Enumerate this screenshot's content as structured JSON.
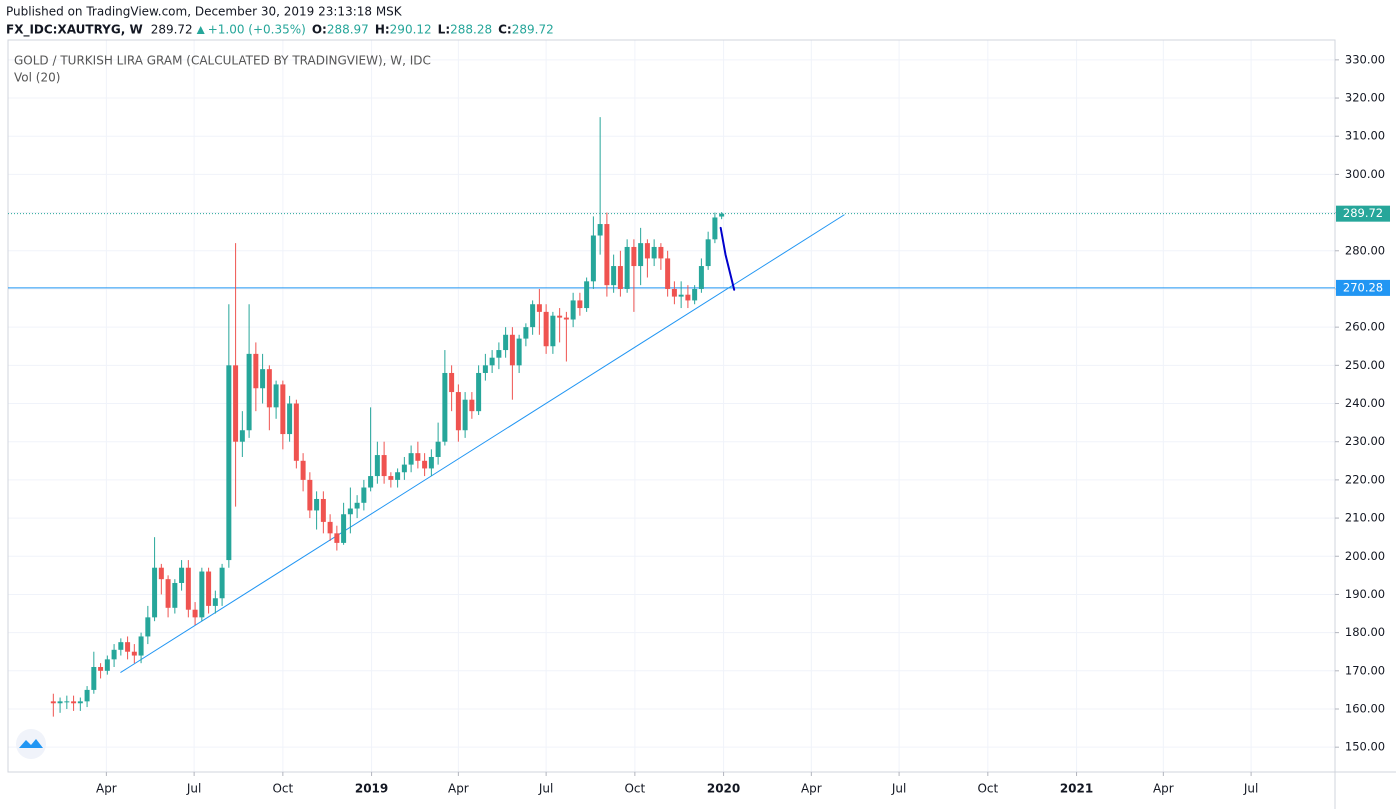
{
  "header": {
    "published": "Published on TradingView.com, December 30, 2019 23:13:18 MSK",
    "symbol": "FX_IDC:XAUTRYG, W",
    "change": "+1.00 (+0.35%)",
    "ohlc_labels": [
      "O:",
      "H:",
      "L:",
      "C:"
    ]
  },
  "chart_data": {
    "type": "candlestick",
    "title": "GOLD / TURKISH LIRA GRAM (CALCULATED BY TRADINGVIEW), W, IDC",
    "subtitle": "Vol (20)",
    "x": [
      "2018-02-05",
      "2018-02-12",
      "2018-02-19",
      "2018-02-26",
      "2018-03-05",
      "2018-03-12",
      "2018-03-19",
      "2018-03-26",
      "2018-04-02",
      "2018-04-09",
      "2018-04-16",
      "2018-04-23",
      "2018-04-30",
      "2018-05-07",
      "2018-05-14",
      "2018-05-21",
      "2018-05-28",
      "2018-06-04",
      "2018-06-11",
      "2018-06-18",
      "2018-06-25",
      "2018-07-02",
      "2018-07-09",
      "2018-07-16",
      "2018-07-23",
      "2018-07-30",
      "2018-08-06",
      "2018-08-13",
      "2018-08-20",
      "2018-08-27",
      "2018-09-03",
      "2018-09-10",
      "2018-09-17",
      "2018-09-24",
      "2018-10-01",
      "2018-10-08",
      "2018-10-15",
      "2018-10-22",
      "2018-10-29",
      "2018-11-05",
      "2018-11-12",
      "2018-11-19",
      "2018-11-26",
      "2018-12-03",
      "2018-12-10",
      "2018-12-17",
      "2018-12-24",
      "2018-12-31",
      "2019-01-07",
      "2019-01-14",
      "2019-01-21",
      "2019-01-28",
      "2019-02-04",
      "2019-02-11",
      "2019-02-18",
      "2019-02-25",
      "2019-03-04",
      "2019-03-11",
      "2019-03-18",
      "2019-03-25",
      "2019-04-01",
      "2019-04-08",
      "2019-04-15",
      "2019-04-22",
      "2019-04-29",
      "2019-05-06",
      "2019-05-13",
      "2019-05-20",
      "2019-05-27",
      "2019-06-03",
      "2019-06-10",
      "2019-06-17",
      "2019-06-24",
      "2019-07-01",
      "2019-07-08",
      "2019-07-15",
      "2019-07-22",
      "2019-07-29",
      "2019-08-05",
      "2019-08-12",
      "2019-08-19",
      "2019-08-26",
      "2019-09-02",
      "2019-09-09",
      "2019-09-16",
      "2019-09-23",
      "2019-09-30",
      "2019-10-07",
      "2019-10-14",
      "2019-10-21",
      "2019-10-28",
      "2019-11-04",
      "2019-11-11",
      "2019-11-18",
      "2019-11-25",
      "2019-12-02",
      "2019-12-09",
      "2019-12-16",
      "2019-12-23",
      "2019-12-30"
    ],
    "open": [
      162,
      161.5,
      162,
      162,
      161.5,
      162,
      165,
      171,
      170,
      173,
      175.5,
      177.5,
      175,
      174,
      179,
      184,
      197,
      194,
      186.5,
      193,
      197,
      186,
      184,
      196,
      187,
      189,
      199,
      250,
      230,
      233,
      253,
      244,
      249,
      239,
      245,
      232,
      240,
      225,
      220,
      212,
      215,
      209,
      206,
      203.5,
      211,
      212.5,
      214,
      218,
      221,
      226.5,
      221,
      220,
      222,
      224,
      227,
      225,
      223,
      226,
      230,
      248,
      243,
      233,
      241,
      238,
      248,
      250,
      252,
      254,
      258,
      250,
      257,
      260,
      266,
      264,
      255,
      263,
      262.5,
      262,
      267,
      265,
      272,
      284,
      287,
      271,
      276,
      270,
      281,
      276,
      282,
      278,
      281,
      278,
      270,
      268,
      268.5,
      267,
      270,
      276,
      283,
      288.97
    ],
    "high": [
      164,
      163,
      163.5,
      163.5,
      163,
      166,
      175,
      172,
      174,
      177,
      178.5,
      179,
      177,
      180,
      187,
      205,
      198,
      195,
      194,
      199,
      199,
      188,
      197,
      197,
      191,
      198,
      266,
      282,
      238,
      266,
      256,
      253,
      250,
      246,
      246,
      242,
      241,
      227,
      222,
      217,
      217,
      211,
      208,
      214,
      218,
      216,
      220,
      239,
      230,
      230,
      222,
      223,
      226,
      229,
      230,
      227,
      228,
      235,
      254,
      250,
      245,
      243,
      243,
      250,
      253,
      254,
      256,
      260,
      260,
      258,
      261,
      267,
      270,
      266,
      264,
      265,
      264,
      269,
      269,
      273,
      289,
      315,
      290,
      279,
      280,
      283,
      283,
      286,
      283,
      283,
      282,
      280,
      272,
      272,
      271,
      271,
      278,
      285,
      290,
      290.12
    ],
    "low": [
      158,
      159,
      160,
      159.5,
      159.5,
      160.5,
      164,
      168,
      169,
      171,
      174,
      173,
      172,
      172,
      177,
      183,
      190,
      184,
      185,
      191,
      184,
      182,
      183,
      185,
      185,
      187,
      197,
      213,
      226,
      231,
      238,
      240,
      233,
      236,
      228,
      230,
      223,
      217,
      210,
      207,
      206,
      204,
      201.5,
      203,
      206,
      210,
      212,
      217,
      219,
      219,
      218,
      218,
      220,
      222,
      223,
      221,
      221,
      224,
      229,
      238,
      230,
      231,
      236,
      237,
      246,
      248,
      249,
      252,
      241,
      248,
      255,
      258,
      258,
      253,
      253,
      256,
      251,
      260,
      263,
      264,
      270,
      279,
      268,
      269,
      268,
      269,
      264,
      271,
      273,
      276,
      275,
      268,
      266,
      265,
      265,
      266,
      269,
      275,
      282,
      288.28
    ],
    "close": [
      161.5,
      162,
      162,
      161.5,
      162,
      165,
      171,
      170,
      173,
      175.5,
      177.5,
      175,
      174,
      179,
      184,
      197,
      194,
      186.5,
      193,
      197,
      186,
      184,
      196,
      187,
      189,
      197,
      250,
      230,
      233,
      253,
      244,
      249,
      239,
      245,
      232,
      240,
      225,
      220,
      212,
      215,
      209,
      206,
      203.5,
      211,
      212.5,
      214,
      218,
      221,
      226.5,
      221,
      220,
      222,
      224,
      227,
      225,
      223,
      226,
      230,
      248,
      243,
      233,
      241,
      238,
      248,
      250,
      252,
      254,
      258,
      250,
      257,
      260,
      266,
      264,
      255,
      263,
      262.5,
      262,
      267,
      265,
      272,
      284,
      287,
      271,
      276,
      270,
      281,
      276,
      282,
      278,
      281,
      278,
      270,
      268,
      268.5,
      267,
      270,
      276,
      283,
      288.72,
      289.72
    ],
    "up_color": "#26a69a",
    "down_color": "#ef5350",
    "xlim": [
      "2017-12-20",
      "2021-09-26"
    ],
    "xticks": [
      {
        "value": "2018-04-01",
        "label": "Apr"
      },
      {
        "value": "2018-07-01",
        "label": "Jul"
      },
      {
        "value": "2018-10-01",
        "label": "Oct"
      },
      {
        "value": "2019-01-01",
        "label": "2019"
      },
      {
        "value": "2019-04-01",
        "label": "Apr"
      },
      {
        "value": "2019-07-01",
        "label": "Jul"
      },
      {
        "value": "2019-10-01",
        "label": "Oct"
      },
      {
        "value": "2020-01-01",
        "label": "2020"
      },
      {
        "value": "2020-04-01",
        "label": "Apr"
      },
      {
        "value": "2020-07-01",
        "label": "Jul"
      },
      {
        "value": "2020-10-01",
        "label": "Oct"
      },
      {
        "value": "2021-01-01",
        "label": "2021"
      },
      {
        "value": "2021-04-01",
        "label": "Apr"
      },
      {
        "value": "2021-07-01",
        "label": "Jul"
      }
    ],
    "ylim": [
      143.5,
      335.2
    ],
    "yticks": [
      {
        "value": 150,
        "label": "150.00"
      },
      {
        "value": 160,
        "label": "160.00"
      },
      {
        "value": 170,
        "label": "170.00"
      },
      {
        "value": 180,
        "label": "180.00"
      },
      {
        "value": 190,
        "label": "190.00"
      },
      {
        "value": 200,
        "label": "200.00"
      },
      {
        "value": 210,
        "label": "210.00"
      },
      {
        "value": 220,
        "label": "220.00"
      },
      {
        "value": 230,
        "label": "230.00"
      },
      {
        "value": 240,
        "label": "240.00"
      },
      {
        "value": 250,
        "label": "250.00"
      },
      {
        "value": 260,
        "label": "260.00"
      },
      {
        "value": 270,
        "label": "270.00"
      },
      {
        "value": 280,
        "label": "280.00"
      },
      {
        "value": 290,
        "label": "290.00"
      },
      {
        "value": 300,
        "label": "300.00"
      },
      {
        "value": 310,
        "label": "310.00"
      },
      {
        "value": 320,
        "label": "320.00"
      },
      {
        "value": 330,
        "label": "330.00"
      }
    ],
    "grid": true,
    "last_price_color": "#26a69a",
    "horizontal_line": {
      "value": 270.28,
      "color": "#2196f3"
    },
    "trend_line": {
      "x": [
        "2018-04-16",
        "2020-05-05"
      ],
      "y": [
        169.6,
        289.4
      ],
      "color": "#2196f3"
    },
    "brush": {
      "x": [
        "2019-12-29",
        "2020-01-03",
        "2020-01-12"
      ],
      "y": [
        286.0,
        279.0,
        269.8
      ],
      "color": "#0000cc"
    }
  }
}
